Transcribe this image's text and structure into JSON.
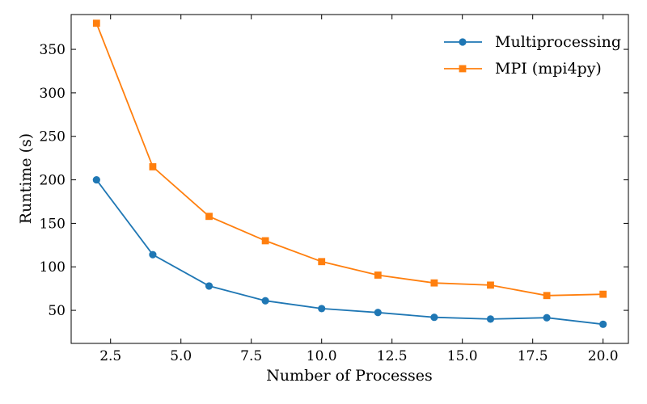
{
  "chart_data": {
    "type": "line",
    "xlabel": "Number of Processes",
    "ylabel": "Runtime (s)",
    "xlim": [
      1.1,
      20.9
    ],
    "ylim": [
      12,
      390
    ],
    "xticks": [
      "2.5",
      "5.0",
      "7.5",
      "10.0",
      "12.5",
      "15.0",
      "17.5",
      "20.0"
    ],
    "yticks": [
      "50",
      "100",
      "150",
      "200",
      "250",
      "300",
      "350"
    ],
    "grid": false,
    "legend_position": "top-right",
    "x": [
      2,
      4,
      6,
      8,
      10,
      12,
      14,
      16,
      18,
      20
    ],
    "series": [
      {
        "name": "Multiprocessing",
        "color": "#1f77b4",
        "marker": "circle",
        "values": [
          200,
          114,
          78,
          61,
          52,
          47.5,
          42,
          40,
          41.5,
          34
        ]
      },
      {
        "name": "MPI (mpi4py)",
        "color": "#ff7f0e",
        "marker": "square",
        "values": [
          380,
          215,
          158,
          130,
          106,
          90.5,
          81.5,
          79,
          67,
          68.5
        ]
      }
    ]
  }
}
